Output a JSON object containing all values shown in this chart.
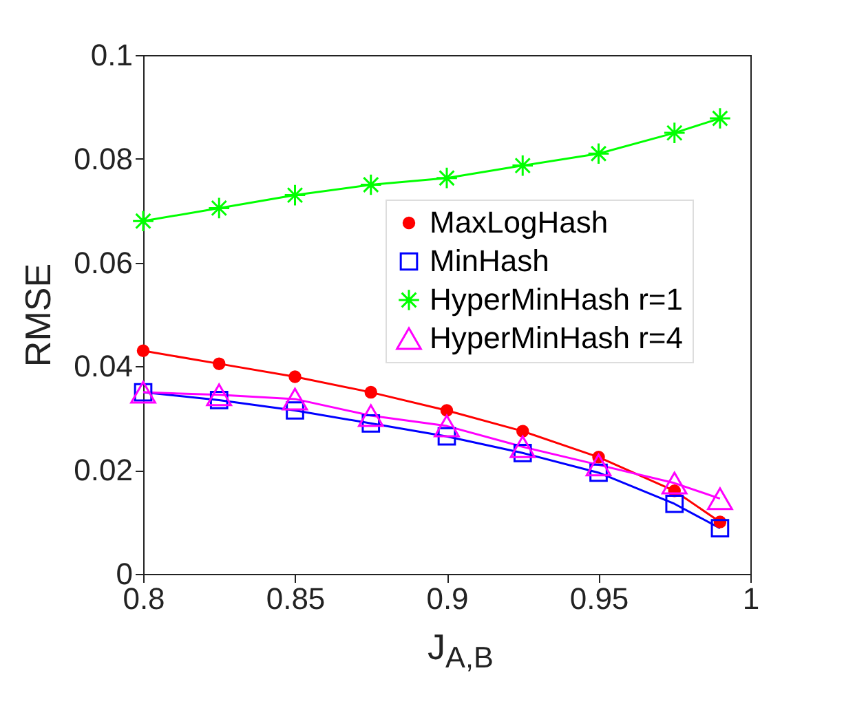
{
  "chart_data": {
    "type": "line",
    "xlabel": "J$_{A,B}$",
    "ylabel": "RMSE",
    "x": [
      0.8,
      0.825,
      0.85,
      0.875,
      0.9,
      0.925,
      0.95,
      0.975,
      0.99
    ],
    "series": [
      {
        "name": "MaxLogHash",
        "color": "#ff0000",
        "marker": "circle",
        "values": [
          0.043,
          0.0405,
          0.038,
          0.035,
          0.0315,
          0.0275,
          0.0225,
          0.016,
          0.01
        ]
      },
      {
        "name": "MinHash",
        "color": "#0000ff",
        "marker": "square",
        "values": [
          0.035,
          0.0335,
          0.0315,
          0.029,
          0.0265,
          0.0233,
          0.0195,
          0.0135,
          0.0088
        ]
      },
      {
        "name": "HyperMinHash r=1",
        "color": "#00ff00",
        "marker": "cross",
        "values": [
          0.068,
          0.0705,
          0.073,
          0.075,
          0.0763,
          0.0787,
          0.081,
          0.085,
          0.0878
        ]
      },
      {
        "name": "HyperMinHash r=4",
        "color": "#ff00ff",
        "marker": "triangle",
        "values": [
          0.035,
          0.0345,
          0.0337,
          0.0305,
          0.0285,
          0.0245,
          0.021,
          0.0175,
          0.0145
        ]
      }
    ],
    "xlim": [
      0.8,
      1
    ],
    "xticks": [
      0.8,
      0.85,
      0.9,
      0.95,
      1
    ],
    "ylim": [
      0,
      0.1
    ],
    "yticks": [
      0,
      0.02,
      0.04,
      0.06,
      0.08,
      0.1
    ],
    "grid": false,
    "legend": "right",
    "line_style": "solid"
  }
}
